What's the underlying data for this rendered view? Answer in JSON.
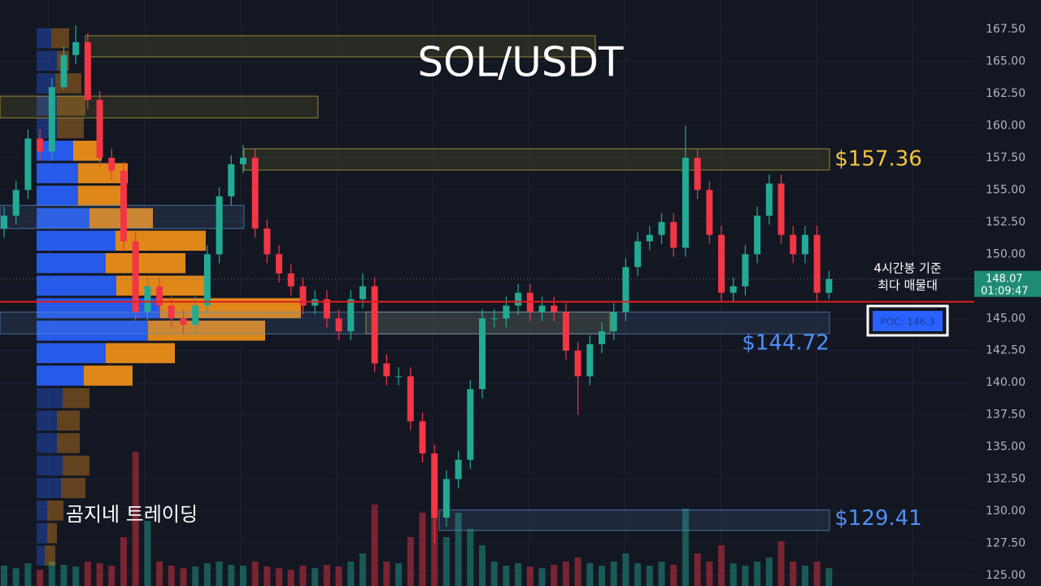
{
  "chart_data": {
    "type": "candlestick",
    "title": "SOL/USDT",
    "watermark": "곰지네 트레이딩",
    "annotation": [
      "4시간봉 기준",
      "최다 매물대"
    ],
    "up_color": "#22ab94",
    "down_color": "#f23645",
    "ylim": [
      124.18,
      169.78
    ],
    "yticks": [
      {
        "value": 125,
        "label": "125.00"
      },
      {
        "value": 127.5,
        "label": "127.50"
      },
      {
        "value": 130,
        "label": "130.00"
      },
      {
        "value": 132.5,
        "label": "132.50"
      },
      {
        "value": 135,
        "label": "135.00"
      },
      {
        "value": 137.5,
        "label": "137.50"
      },
      {
        "value": 140,
        "label": "140.00"
      },
      {
        "value": 142.5,
        "label": "142.50"
      },
      {
        "value": 145,
        "label": "145.00"
      },
      {
        "value": 147.5,
        "label": "147.50"
      },
      {
        "value": 150,
        "label": "150.00"
      },
      {
        "value": 152.5,
        "label": "152.50"
      },
      {
        "value": 155,
        "label": "155.00"
      },
      {
        "value": 157.5,
        "label": "157.50"
      },
      {
        "value": 160,
        "label": "160.00"
      },
      {
        "value": 162.5,
        "label": "162.50"
      },
      {
        "value": 165,
        "label": "165.00"
      },
      {
        "value": 167.5,
        "label": "167.50"
      }
    ],
    "grid": true,
    "open": [
      152,
      153,
      155,
      159,
      158,
      163,
      165.5,
      166.5,
      162,
      157.5,
      156.5,
      151,
      145.5,
      147.5,
      146,
      145,
      144.5,
      146,
      150,
      154.5,
      157,
      157.5,
      152,
      150,
      148.5,
      147.5,
      146,
      146.5,
      145,
      144,
      146.5,
      147.5,
      141.5,
      140.5,
      140.5,
      137,
      134.5,
      129.5,
      132.5,
      134,
      139.5,
      145,
      145,
      146,
      147,
      145.5,
      146,
      145.5,
      142.5,
      140.5,
      143,
      144,
      145.5,
      149,
      151,
      151.5,
      152.5,
      150.5,
      157.5,
      155,
      151.5,
      147,
      147.5,
      150,
      153,
      155.5,
      151.5,
      150,
      151.5,
      147
    ],
    "high": [
      153.7,
      155.7,
      159.7,
      159.7,
      163.7,
      166.2,
      167.8,
      167.2,
      162.7,
      158.2,
      157.2,
      151.7,
      148.2,
      148.2,
      146.7,
      145.7,
      146.7,
      150.7,
      155.2,
      157.7,
      158.5,
      158.2,
      152.7,
      150.7,
      149.2,
      148.2,
      147.2,
      147.2,
      145.7,
      147.2,
      148.5,
      148.2,
      142.2,
      141.2,
      141.2,
      137.7,
      135.2,
      133.2,
      134.7,
      140.2,
      145.7,
      145.7,
      146.7,
      147.7,
      147.7,
      146.7,
      146.7,
      146.2,
      143.2,
      143.7,
      144.7,
      146.2,
      149.7,
      151.7,
      152.2,
      153.2,
      153.2,
      160,
      158.2,
      155.7,
      152.2,
      148.2,
      150.7,
      153.7,
      156.2,
      156.2,
      152.2,
      152.2,
      152.2,
      148.7
    ],
    "low": [
      151.3,
      152.3,
      154.3,
      157.3,
      157.3,
      162.8,
      164.8,
      161.3,
      156.8,
      155.8,
      150.3,
      144.8,
      144.8,
      145.3,
      144.3,
      143.8,
      143.8,
      145.3,
      149.3,
      153.8,
      156.3,
      151.3,
      149.3,
      147.8,
      146.8,
      145.3,
      145.3,
      144.3,
      143.3,
      143.3,
      145.8,
      140.8,
      139.8,
      139.8,
      136.3,
      133.8,
      127.5,
      128.8,
      131.8,
      133.3,
      138.8,
      144.3,
      144.3,
      145.3,
      144.8,
      144.8,
      144.8,
      141.8,
      137.5,
      139.8,
      142.3,
      143.3,
      144.8,
      148.3,
      150.3,
      150.8,
      149.8,
      149.8,
      154.3,
      150.8,
      146.3,
      146.3,
      146.8,
      149.3,
      152.3,
      150.8,
      149.3,
      149.3,
      146.3,
      146.5
    ],
    "close": [
      153,
      155,
      159,
      158,
      163,
      165.5,
      166.5,
      162,
      157.5,
      156.5,
      151,
      145.5,
      147.5,
      146,
      145,
      144.5,
      146,
      150,
      154.5,
      157,
      157.5,
      152,
      150,
      148.5,
      147.5,
      146,
      146.5,
      145,
      144,
      146.5,
      147.5,
      141.5,
      140.5,
      140.5,
      137,
      134.5,
      129.5,
      132.5,
      134,
      139.5,
      145,
      145,
      146,
      147,
      145.5,
      146,
      145.5,
      142.5,
      140.5,
      143,
      144,
      145.5,
      149,
      151,
      151.5,
      152.5,
      150.5,
      157.5,
      155,
      151.5,
      147,
      147.5,
      150,
      153,
      155.5,
      151.5,
      150,
      151.5,
      147,
      148.07
    ],
    "volume": [
      25,
      22,
      28,
      20,
      30,
      26,
      24,
      30,
      28,
      25,
      60,
      165,
      80,
      30,
      25,
      22,
      24,
      28,
      30,
      26,
      25,
      30,
      24,
      22,
      20,
      25,
      22,
      26,
      24,
      30,
      40,
      100,
      30,
      28,
      60,
      90,
      130,
      60,
      90,
      70,
      50,
      30,
      25,
      28,
      24,
      22,
      26,
      30,
      35,
      28,
      25,
      30,
      40,
      28,
      25,
      30,
      26,
      95,
      40,
      30,
      50,
      28,
      25,
      30,
      35,
      55,
      30,
      25,
      30,
      22
    ],
    "last_price": {
      "value": 148.07,
      "label": "148.07"
    },
    "countdown": "01:09:47",
    "poc": {
      "value": 146.3,
      "label": "POC: 146.3"
    },
    "volume_profile": {
      "price": [
        166.8,
        165.05,
        163.3,
        161.55,
        159.8,
        158.05,
        156.3,
        154.55,
        152.8,
        151.05,
        149.3,
        147.55,
        145.8,
        144.05,
        142.3,
        140.55,
        138.8,
        137.05,
        135.3,
        133.55,
        131.8,
        130.05,
        128.3,
        126.55
      ],
      "up": [
        18,
        25,
        23,
        25,
        25,
        45,
        51,
        51,
        65,
        97,
        85,
        98,
        152,
        137,
        85,
        58,
        32,
        25,
        25,
        32,
        30,
        13,
        13,
        10
      ],
      "down": [
        22,
        15,
        32,
        35,
        33,
        35,
        61,
        54,
        78,
        111,
        98,
        110,
        173,
        144,
        85,
        60,
        33,
        28,
        28,
        33,
        30,
        20,
        12,
        13
      ],
      "value_area": [
        140.1,
        159.5
      ]
    },
    "zones": [
      {
        "kind": "supply",
        "range": [
          165.35,
          167.0
        ]
      },
      {
        "kind": "supply",
        "range": [
          160.6,
          162.3
        ]
      },
      {
        "kind": "supply",
        "range": [
          156.55,
          158.2
        ],
        "label": {
          "value": 157.36,
          "label": "$157.36"
        }
      },
      {
        "kind": "supply",
        "range": [
          143.8,
          145.5
        ]
      },
      {
        "kind": "demand",
        "range": [
          143.8,
          145.5
        ],
        "label": {
          "value": 144.72,
          "label": "$144.72"
        }
      },
      {
        "kind": "demand",
        "range": [
          152.0,
          153.8
        ]
      },
      {
        "kind": "demand",
        "range": [
          128.5,
          130.1
        ],
        "label": {
          "value": 129.41,
          "label": "$129.41"
        }
      }
    ]
  }
}
